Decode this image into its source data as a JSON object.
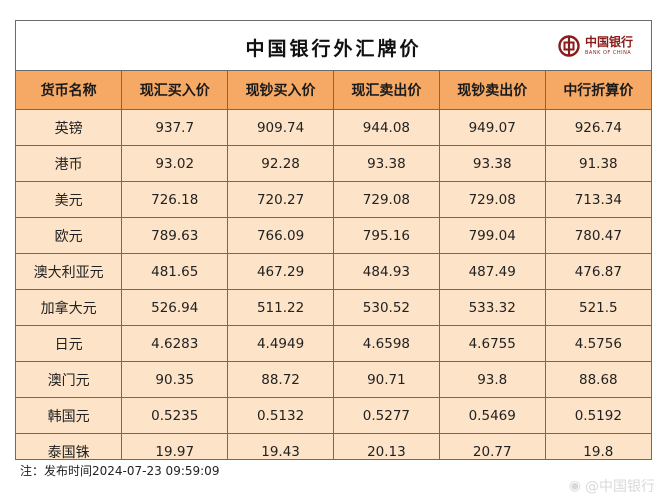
{
  "board": {
    "title": "中国银行外汇牌价",
    "logo_text": "中国银行",
    "logo_subtext": "BANK OF CHINA"
  },
  "table": {
    "headers": [
      "货币名称",
      "现汇买入价",
      "现钞买入价",
      "现汇卖出价",
      "现钞卖出价",
      "中行折算价"
    ],
    "rows": [
      [
        "英镑",
        "937.7",
        "909.74",
        "944.08",
        "949.07",
        "926.74"
      ],
      [
        "港币",
        "93.02",
        "92.28",
        "93.38",
        "93.38",
        "91.38"
      ],
      [
        "美元",
        "726.18",
        "720.27",
        "729.08",
        "729.08",
        "713.34"
      ],
      [
        "欧元",
        "789.63",
        "766.09",
        "795.16",
        "799.04",
        "780.47"
      ],
      [
        "澳大利亚元",
        "481.65",
        "467.29",
        "484.93",
        "487.49",
        "476.87"
      ],
      [
        "加拿大元",
        "526.94",
        "511.22",
        "530.52",
        "533.32",
        "521.5"
      ],
      [
        "日元",
        "4.6283",
        "4.4949",
        "4.6598",
        "4.6755",
        "4.5756"
      ],
      [
        "澳门元",
        "90.35",
        "88.72",
        "90.71",
        "93.8",
        "88.68"
      ],
      [
        "韩国元",
        "0.5235",
        "0.5132",
        "0.5277",
        "0.5469",
        "0.5192"
      ],
      [
        "泰国铢",
        "19.97",
        "19.43",
        "20.13",
        "20.77",
        "19.8"
      ]
    ]
  },
  "footer": {
    "note": "注：发布时间2024-07-23 09:59:09"
  },
  "watermark": {
    "text": "@中国银行"
  },
  "colors": {
    "header_bg": "#f6a964",
    "cell_bg": "#fde3c8",
    "border": "#6b6b6b",
    "logo_red": "#8a1b1b"
  }
}
